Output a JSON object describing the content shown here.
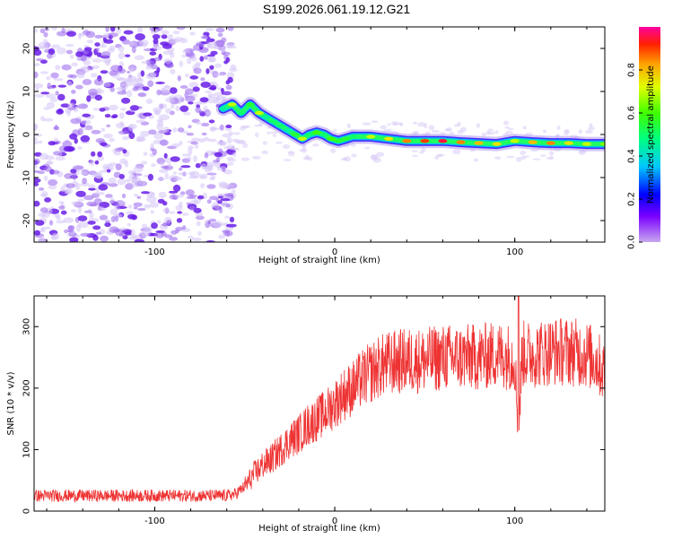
{
  "title": "S199.2026.061.19.12.G21",
  "chart_data": [
    {
      "type": "heatmap",
      "name": "spectrogram",
      "xlabel": "Height of straight line (km)",
      "ylabel": "Frequency (Hz)",
      "xlim": [
        -167,
        150
      ],
      "ylim": [
        -25,
        25
      ],
      "x_ticks": [
        -100,
        0,
        100
      ],
      "y_ticks": [
        20,
        10,
        0,
        -10,
        -20
      ],
      "x_tick_labels": [
        "-100",
        "0",
        "100"
      ],
      "y_tick_labels": [
        "20",
        "10",
        "0",
        "-10",
        "-20"
      ],
      "noise_region_end_km": -62,
      "ridge": {
        "x": [
          -62,
          -57,
          -52,
          -47,
          -42,
          -38,
          -34,
          -30,
          -26,
          -22,
          -18,
          -14,
          -10,
          -6,
          -2,
          2,
          6,
          10,
          20,
          30,
          40,
          50,
          60,
          70,
          80,
          90,
          100,
          110,
          120,
          130,
          140,
          150
        ],
        "y": [
          6,
          7,
          5,
          7,
          5,
          4,
          3,
          2,
          1,
          0,
          -1,
          0,
          0.5,
          0,
          -1,
          -1.5,
          -1,
          -0.5,
          -0.5,
          -1,
          -1.5,
          -1.5,
          -1.5,
          -1.8,
          -2,
          -2.2,
          -1.5,
          -1.8,
          -2,
          -2,
          -2.2,
          -2.2
        ],
        "amplitude": [
          0.45,
          0.7,
          0.5,
          0.55,
          0.7,
          0.45,
          0.5,
          0.5,
          0.45,
          0.55,
          0.7,
          0.5,
          0.6,
          0.5,
          0.6,
          0.55,
          0.55,
          0.5,
          0.7,
          0.75,
          0.85,
          0.9,
          0.95,
          0.85,
          0.8,
          0.75,
          0.7,
          0.8,
          0.85,
          0.75,
          0.7,
          0.65
        ]
      }
    },
    {
      "type": "colorbar",
      "name": "amplitude-colorbar",
      "label": "Normalized spectral amplitude",
      "range": [
        0,
        1
      ],
      "ticks": [
        0.0,
        0.2,
        0.4,
        0.6,
        0.8
      ],
      "tick_labels": [
        "0.0",
        "0.2",
        "0.4",
        "0.6",
        "0.8"
      ]
    },
    {
      "type": "line",
      "name": "snr",
      "xlabel": "Height of straight line (km)",
      "ylabel": "SNR (10 * v/v)",
      "xlim": [
        -167,
        150
      ],
      "ylim": [
        0,
        350
      ],
      "x_ticks": [
        -100,
        0,
        100
      ],
      "y_ticks": [
        0,
        100,
        200,
        300
      ],
      "x_tick_labels": [
        "-100",
        "0",
        "100"
      ],
      "y_tick_labels": [
        "0",
        "100",
        "200",
        "300"
      ],
      "color": "#ee3333",
      "series": [
        {
          "name": "SNR",
          "x": [
            -167,
            -150,
            -130,
            -110,
            -90,
            -70,
            -60,
            -55,
            -50,
            -45,
            -40,
            -35,
            -30,
            -25,
            -20,
            -15,
            -10,
            -5,
            0,
            5,
            10,
            15,
            20,
            25,
            30,
            40,
            50,
            60,
            70,
            80,
            90,
            100,
            102,
            104,
            110,
            120,
            130,
            140,
            145,
            150
          ],
          "values": [
            25,
            25,
            25,
            25,
            25,
            25,
            25,
            28,
            40,
            60,
            75,
            85,
            100,
            115,
            125,
            140,
            150,
            160,
            175,
            190,
            200,
            215,
            225,
            235,
            240,
            245,
            245,
            250,
            250,
            250,
            255,
            250,
            120,
            255,
            255,
            260,
            260,
            255,
            245,
            225
          ]
        }
      ]
    }
  ],
  "colors": {
    "line": "#ee3333",
    "noise": "#7a33ee"
  }
}
